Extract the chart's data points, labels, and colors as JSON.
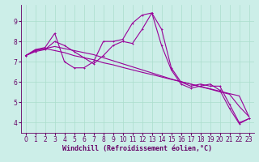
{
  "xlabel": "Windchill (Refroidissement éolien,°C)",
  "background_color": "#cceee8",
  "grid_color": "#aaddcc",
  "line_color": "#990099",
  "spine_color": "#660066",
  "tick_color": "#660066",
  "xlim": [
    -0.5,
    23.5
  ],
  "ylim": [
    3.5,
    9.8
  ],
  "xticks": [
    0,
    1,
    2,
    3,
    4,
    5,
    6,
    7,
    8,
    9,
    10,
    11,
    12,
    13,
    14,
    15,
    16,
    17,
    18,
    19,
    20,
    21,
    22,
    23
  ],
  "yticks": [
    4,
    5,
    6,
    7,
    8,
    9
  ],
  "line1_x": [
    0,
    1,
    2,
    3,
    4,
    5,
    6,
    7,
    8,
    9,
    10,
    11,
    12,
    13,
    14,
    15,
    16,
    17,
    18,
    19,
    20,
    21,
    22,
    23
  ],
  "line1_y": [
    7.3,
    7.6,
    7.7,
    8.4,
    7.0,
    6.7,
    6.7,
    7.0,
    8.0,
    8.0,
    8.1,
    8.9,
    9.3,
    9.4,
    8.6,
    6.7,
    6.0,
    5.8,
    5.9,
    5.8,
    5.8,
    4.9,
    4.0,
    4.2
  ],
  "line2_x": [
    0,
    1,
    2,
    3,
    4,
    5,
    6,
    7,
    8,
    9,
    10,
    11,
    12,
    13,
    14,
    15,
    16,
    17,
    18,
    19,
    20,
    21,
    22,
    23
  ],
  "line2_y": [
    7.3,
    7.55,
    7.65,
    7.55,
    7.45,
    7.3,
    7.2,
    7.1,
    6.95,
    6.85,
    6.72,
    6.6,
    6.48,
    6.37,
    6.25,
    6.13,
    6.02,
    5.9,
    5.78,
    5.67,
    5.55,
    5.43,
    5.32,
    4.3
  ],
  "line3_x": [
    0,
    1,
    2,
    3,
    4,
    5,
    6,
    7,
    8,
    9,
    10,
    11,
    12,
    13,
    14,
    15,
    16,
    17,
    18,
    19,
    20,
    21,
    22,
    23
  ],
  "line3_y": [
    7.3,
    7.55,
    7.65,
    7.75,
    7.65,
    7.55,
    7.45,
    7.35,
    7.2,
    7.05,
    6.9,
    6.75,
    6.6,
    6.45,
    6.3,
    6.15,
    6.02,
    5.9,
    5.77,
    5.65,
    5.52,
    5.4,
    4.8,
    4.3
  ],
  "line4_x": [
    0,
    1,
    2,
    3,
    4,
    5,
    6,
    7,
    8,
    9,
    10,
    11,
    12,
    13,
    14,
    15,
    16,
    17,
    18,
    19,
    20,
    21,
    22,
    23
  ],
  "line4_y": [
    7.3,
    7.5,
    7.6,
    8.0,
    7.8,
    7.5,
    7.2,
    6.9,
    7.3,
    7.8,
    8.0,
    7.9,
    8.6,
    9.4,
    7.8,
    6.6,
    5.9,
    5.7,
    5.8,
    5.9,
    5.6,
    4.7,
    3.95,
    4.2
  ],
  "xlabel_fontsize": 6,
  "tick_fontsize": 5.5,
  "lw": 0.8,
  "marker_size": 2.0
}
